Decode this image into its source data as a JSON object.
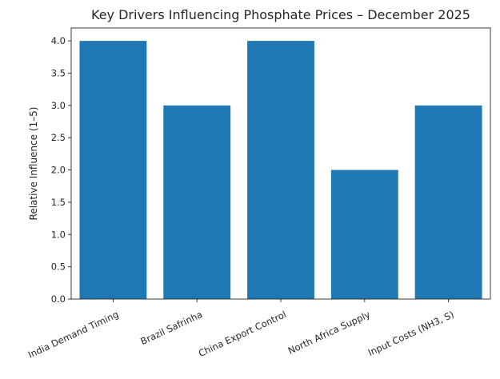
{
  "chart_data": {
    "type": "bar",
    "title": "Key Drivers Influencing Phosphate Prices – December 2025",
    "xlabel": "",
    "ylabel": "Relative Influence (1–5)",
    "categories": [
      "India Demand Timing",
      "Brazil Safrinha",
      "China Export Control",
      "North Africa Supply",
      "Input Costs (NH3, S)"
    ],
    "values": [
      4,
      3,
      4,
      2,
      3
    ],
    "ylim": [
      0,
      4.2
    ],
    "yticks": [
      0.0,
      0.5,
      1.0,
      1.5,
      2.0,
      2.5,
      3.0,
      3.5,
      4.0
    ],
    "ytick_labels": [
      "0.0",
      "0.5",
      "1.0",
      "1.5",
      "2.0",
      "2.5",
      "3.0",
      "3.5",
      "4.0"
    ],
    "bar_color": "#1f77b4",
    "grid": false,
    "legend": "none"
  }
}
